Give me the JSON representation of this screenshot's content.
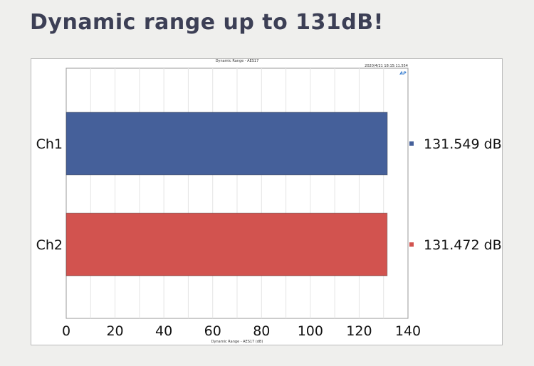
{
  "page_title": "Dynamic range up to 131dB!",
  "chart_data": {
    "type": "bar",
    "orientation": "horizontal",
    "title": "Dynamic Range - AES17",
    "timestamp": "2020/4/21 18:15:11.554",
    "logo": "AP",
    "xlabel": "Dynamic Range - AES17 (dB)",
    "xlim": [
      0,
      140
    ],
    "xticks": [
      0,
      20,
      40,
      60,
      80,
      100,
      120,
      140
    ],
    "grid": true,
    "categories": [
      "Ch1",
      "Ch2"
    ],
    "values": [
      131.549,
      131.472
    ],
    "value_labels": [
      "131.549 dB",
      "131.472 dB"
    ],
    "colors": [
      "#45609a",
      "#d2534f"
    ]
  }
}
